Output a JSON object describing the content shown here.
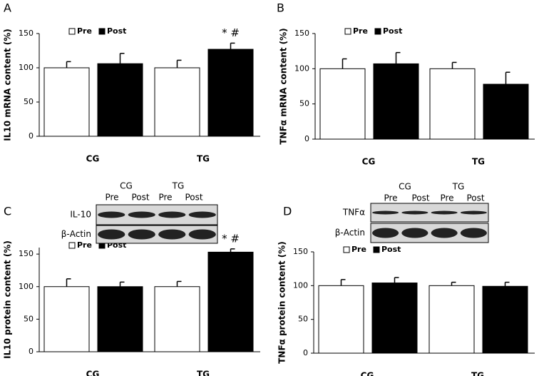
{
  "chart_data": [
    {
      "type": "bar",
      "label": "A",
      "ylabel": "IL10  mRNA content (%)",
      "categories": [
        "CG",
        "TG"
      ],
      "series": [
        {
          "name": "Pre",
          "color": "#ffffff",
          "values": [
            100,
            100
          ],
          "errors": [
            9,
            11
          ]
        },
        {
          "name": "Post",
          "color": "#000000",
          "values": [
            106,
            127
          ],
          "errors": [
            15,
            9
          ]
        }
      ],
      "ylim": [
        0,
        150
      ],
      "yticks": [
        0,
        50,
        100,
        150
      ],
      "annotations": [
        {
          "category": 1,
          "series": 1,
          "text": "* #"
        }
      ]
    },
    {
      "type": "bar",
      "label": "B",
      "ylabel": "TNFα  mRNA content (%)",
      "categories": [
        "CG",
        "TG"
      ],
      "series": [
        {
          "name": "Pre",
          "color": "#ffffff",
          "values": [
            100,
            100
          ],
          "errors": [
            14,
            9
          ]
        },
        {
          "name": "Post",
          "color": "#000000",
          "values": [
            107,
            78
          ],
          "errors": [
            16,
            17
          ]
        }
      ],
      "ylim": [
        0,
        150
      ],
      "yticks": [
        0,
        50,
        100,
        150
      ],
      "annotations": []
    },
    {
      "type": "bar",
      "label": "C",
      "ylabel": "IL10  protein content (%)",
      "categories": [
        "CG",
        "TG"
      ],
      "series": [
        {
          "name": "Pre",
          "color": "#ffffff",
          "values": [
            100,
            100
          ],
          "errors": [
            12,
            8
          ]
        },
        {
          "name": "Post",
          "color": "#000000",
          "values": [
            100,
            153
          ],
          "errors": [
            7,
            5
          ]
        }
      ],
      "ylim": [
        0,
        160
      ],
      "yticks": [
        0,
        50,
        100,
        150
      ],
      "annotations": [
        {
          "category": 1,
          "series": 1,
          "text": "* #"
        }
      ]
    },
    {
      "type": "bar",
      "label": "D",
      "ylabel": "TNFα  protein content (%)",
      "categories": [
        "CG",
        "TG"
      ],
      "series": [
        {
          "name": "Pre",
          "color": "#ffffff",
          "values": [
            100,
            100
          ],
          "errors": [
            9,
            5
          ]
        },
        {
          "name": "Post",
          "color": "#000000",
          "values": [
            104,
            99
          ],
          "errors": [
            8,
            6
          ]
        }
      ],
      "ylim": [
        0,
        150
      ],
      "yticks": [
        0,
        50,
        100,
        150
      ],
      "annotations": []
    }
  ],
  "blots": [
    {
      "groups": [
        "CG",
        "TG"
      ],
      "lanes": [
        "Pre",
        "Post",
        "Pre",
        "Post"
      ],
      "rows": [
        "IL-10",
        "β-Actin"
      ]
    },
    {
      "groups": [
        "CG",
        "TG"
      ],
      "lanes": [
        "Pre",
        "Post",
        "Pre",
        "Post"
      ],
      "rows": [
        "TNFα",
        "β-Actin"
      ]
    }
  ]
}
